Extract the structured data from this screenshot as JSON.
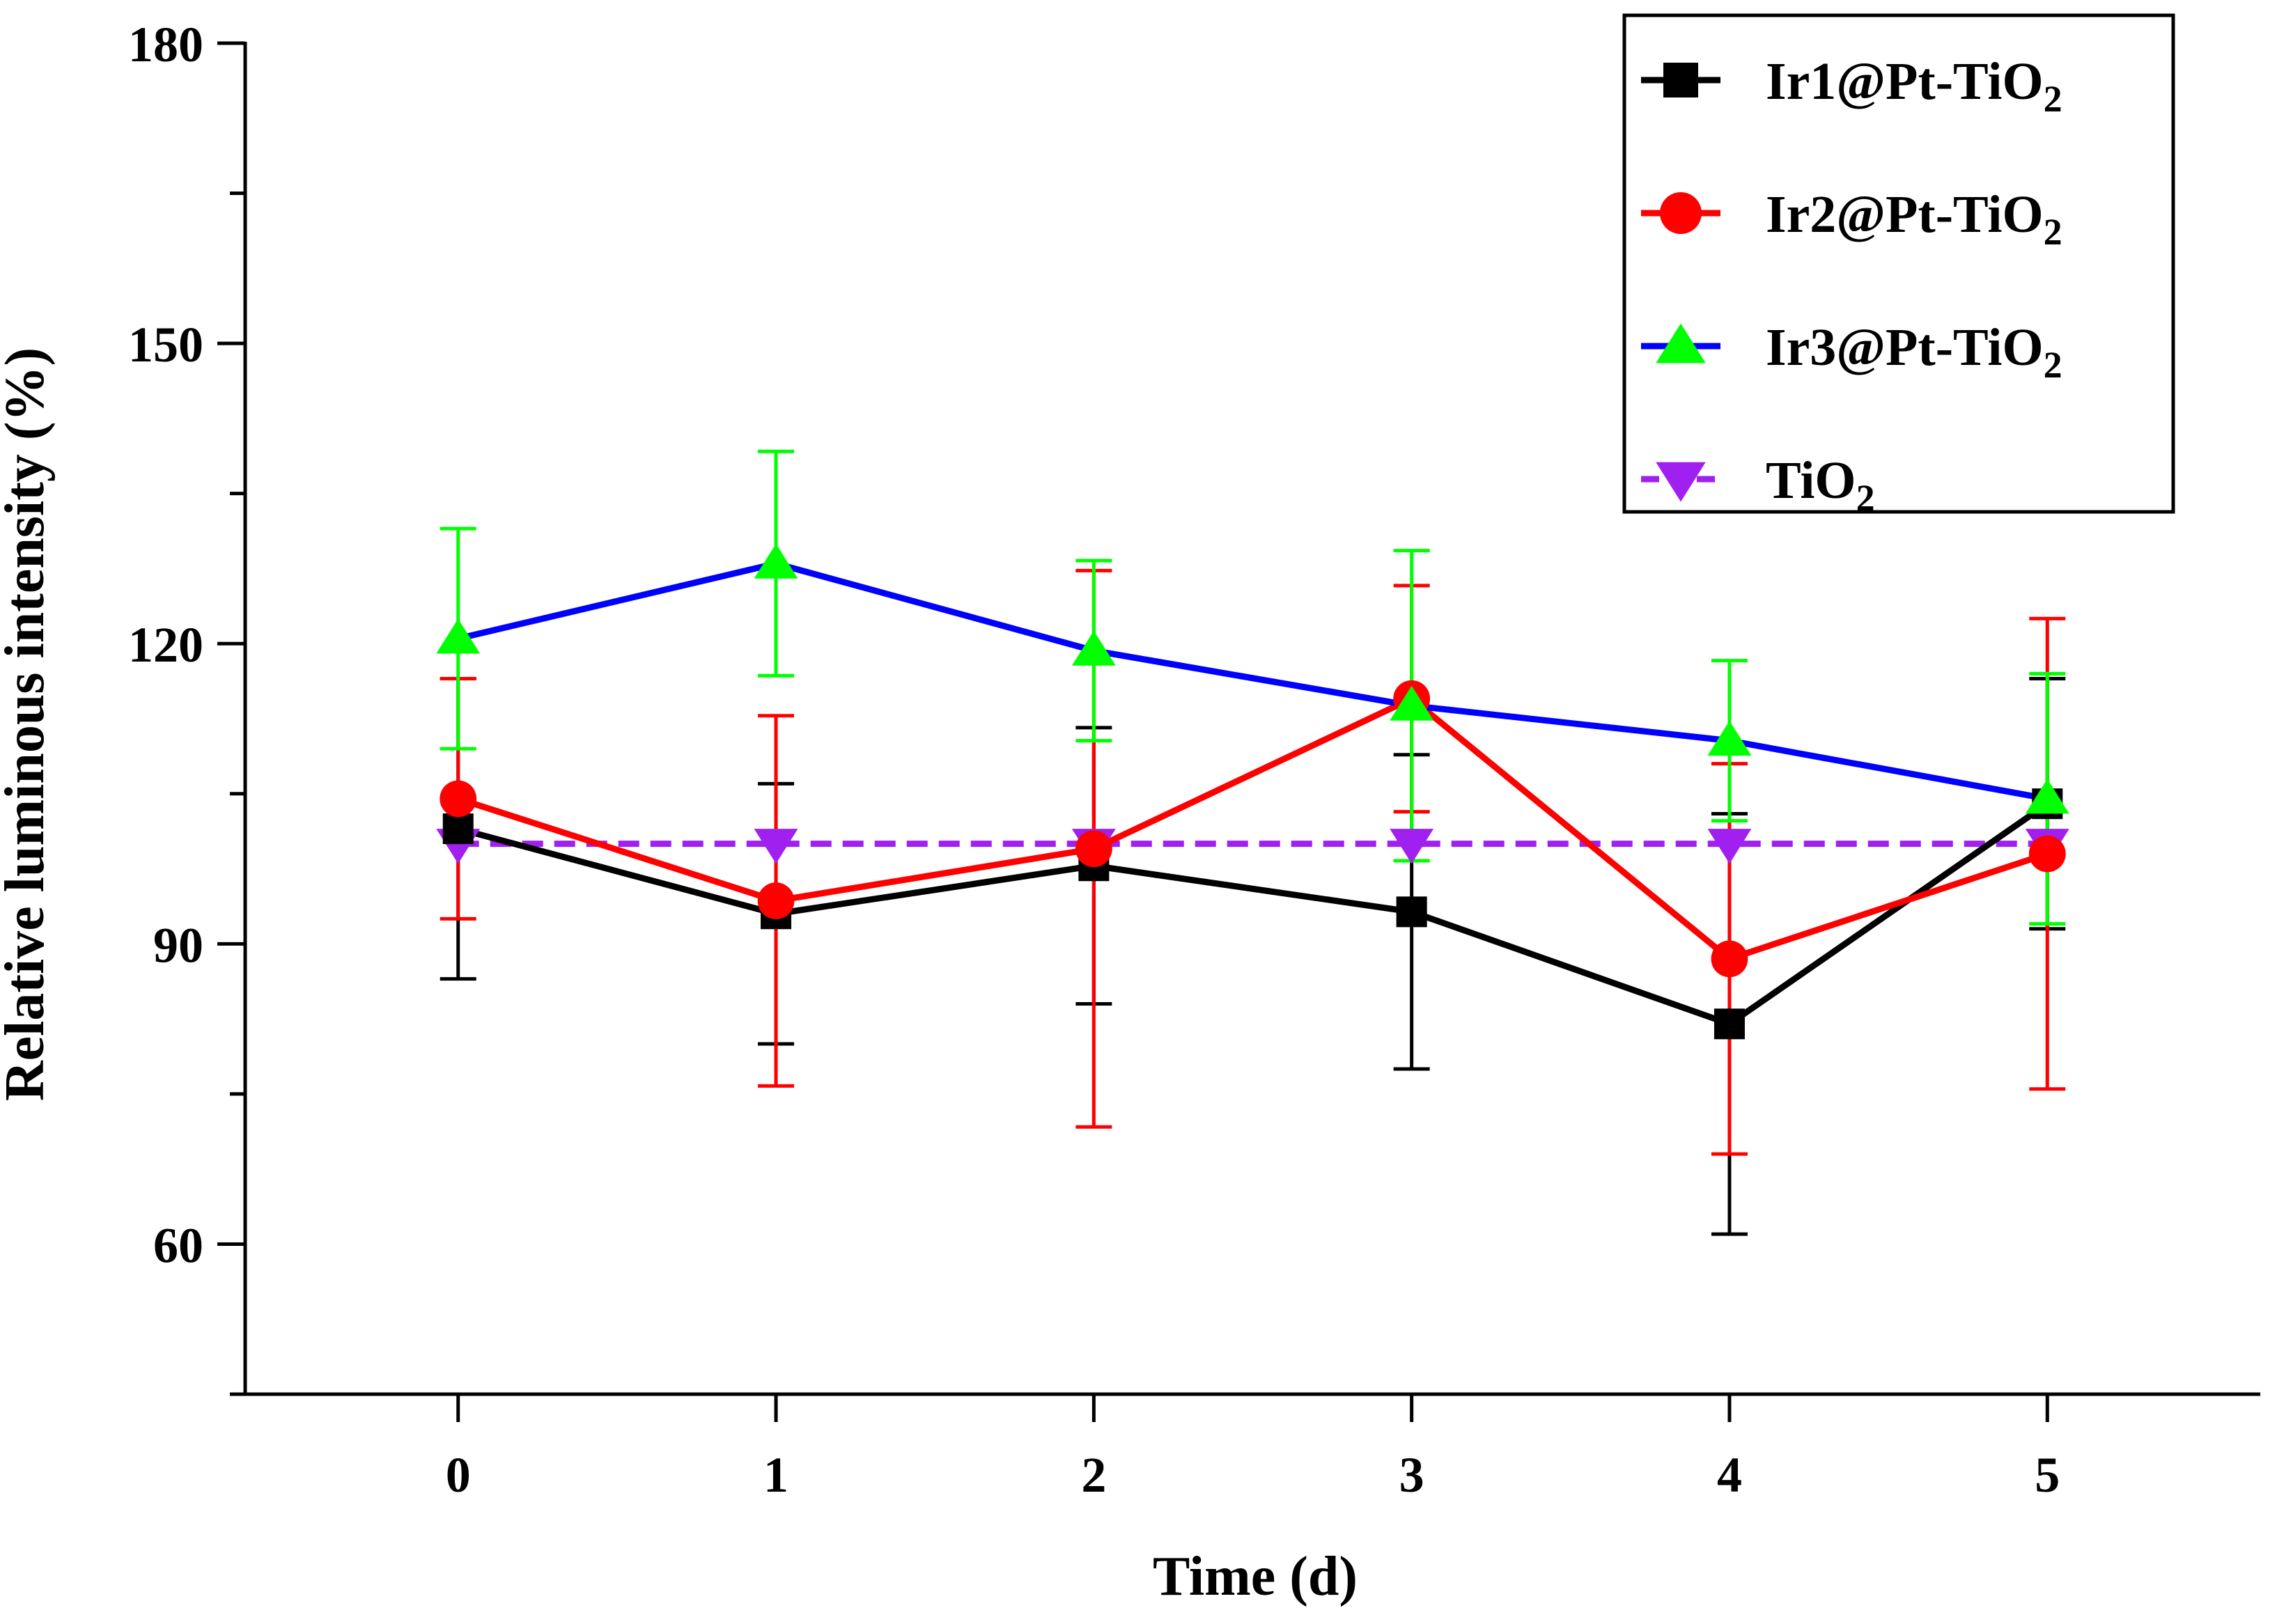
{
  "chart_data": {
    "type": "line",
    "title": "",
    "xlabel": "Time (d)",
    "ylabel": "Relative luminous intensity (%)",
    "xlim": [
      -0.67,
      5.67
    ],
    "ylim": [
      45,
      180
    ],
    "x": [
      0,
      1,
      2,
      3,
      4,
      5
    ],
    "xticks": [
      "0",
      "1",
      "2",
      "3",
      "4",
      "5"
    ],
    "yticks": [
      "60",
      "90",
      "120",
      "150",
      "180"
    ],
    "grid": false,
    "legend_position": "top-right",
    "series": [
      {
        "name": "Ir1@Pt-TiO",
        "name_sub": "2",
        "color": "#000000",
        "marker": "square",
        "dashed": false,
        "values": [
          101.5,
          93,
          97.8,
          93.2,
          82,
          104
        ],
        "errors": [
          15,
          13,
          13.8,
          15.7,
          21,
          12.5
        ]
      },
      {
        "name": "Ir2@Pt-TiO",
        "name_sub": "2",
        "color": "#ff0000",
        "marker": "circle",
        "dashed": false,
        "values": [
          104.5,
          94.3,
          99.5,
          114.5,
          88.5,
          99
        ],
        "errors": [
          12,
          18.5,
          27.8,
          11.3,
          19.5,
          23.5
        ]
      },
      {
        "name": "Ir3@Pt-TiO",
        "name_sub": "2",
        "color": "#0000ff",
        "marker": "triangle-up",
        "marker_color": "#00ff00",
        "dashed": false,
        "values": [
          120.5,
          128,
          119.3,
          113.8,
          110.3,
          104.5
        ],
        "errors": [
          11,
          11.2,
          9,
          15.5,
          8,
          12.5
        ]
      },
      {
        "name": "TiO",
        "name_sub": "2",
        "color": "#a020f0",
        "marker": "triangle-down",
        "dashed": true,
        "values": [
          100,
          100,
          100,
          100,
          100,
          100
        ],
        "errors": [
          0,
          0,
          0,
          0,
          0,
          0
        ]
      }
    ]
  }
}
